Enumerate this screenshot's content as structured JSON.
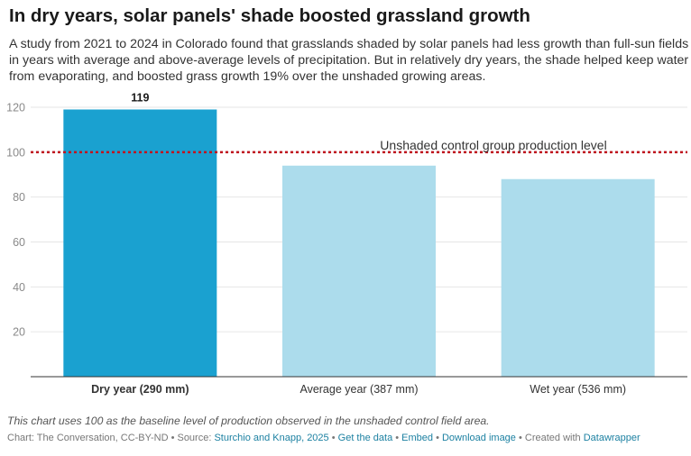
{
  "title": "In dry years, solar panels' shade boosted grassland growth",
  "subtitle": "A study from 2021 to 2024 in Colorado found that grasslands shaded by solar panels had less growth than full-sun fields in years with average and above-average levels of precipitation. But in relatively dry years, the shade helped keep water from evaporating, and boosted grass growth 19% over the unshaded growing areas.",
  "chart_data": {
    "type": "bar",
    "categories": [
      "Dry year (290 mm)",
      "Average year (387 mm)",
      "Wet year (536 mm)"
    ],
    "values": [
      119,
      94,
      88
    ],
    "data_labels": [
      "119",
      "",
      ""
    ],
    "highlight_index": 0,
    "colors": {
      "highlight": "#1aa1d0",
      "default": "#acdcec",
      "reference_line": "#c0141f"
    },
    "ylim": [
      0,
      120
    ],
    "yticks": [
      20,
      40,
      60,
      80,
      100,
      120
    ],
    "grid": true,
    "xlabel": "",
    "ylabel": "",
    "reference_line": {
      "value": 100,
      "label": "Unshaded control group production level"
    }
  },
  "notes": "This chart uses 100 as the baseline level of production observed in the unshaded control field area.",
  "footer": {
    "prefix": "Chart: The Conversation, CC-BY-ND • Source: ",
    "source_link": "Sturchio and Knapp, 2025",
    "sep1": " • ",
    "get_data": "Get the data",
    "sep2": " • ",
    "embed": "Embed",
    "sep3": " • ",
    "download": "Download image",
    "created_prefix": " • Created with ",
    "datawrapper": "Datawrapper"
  }
}
